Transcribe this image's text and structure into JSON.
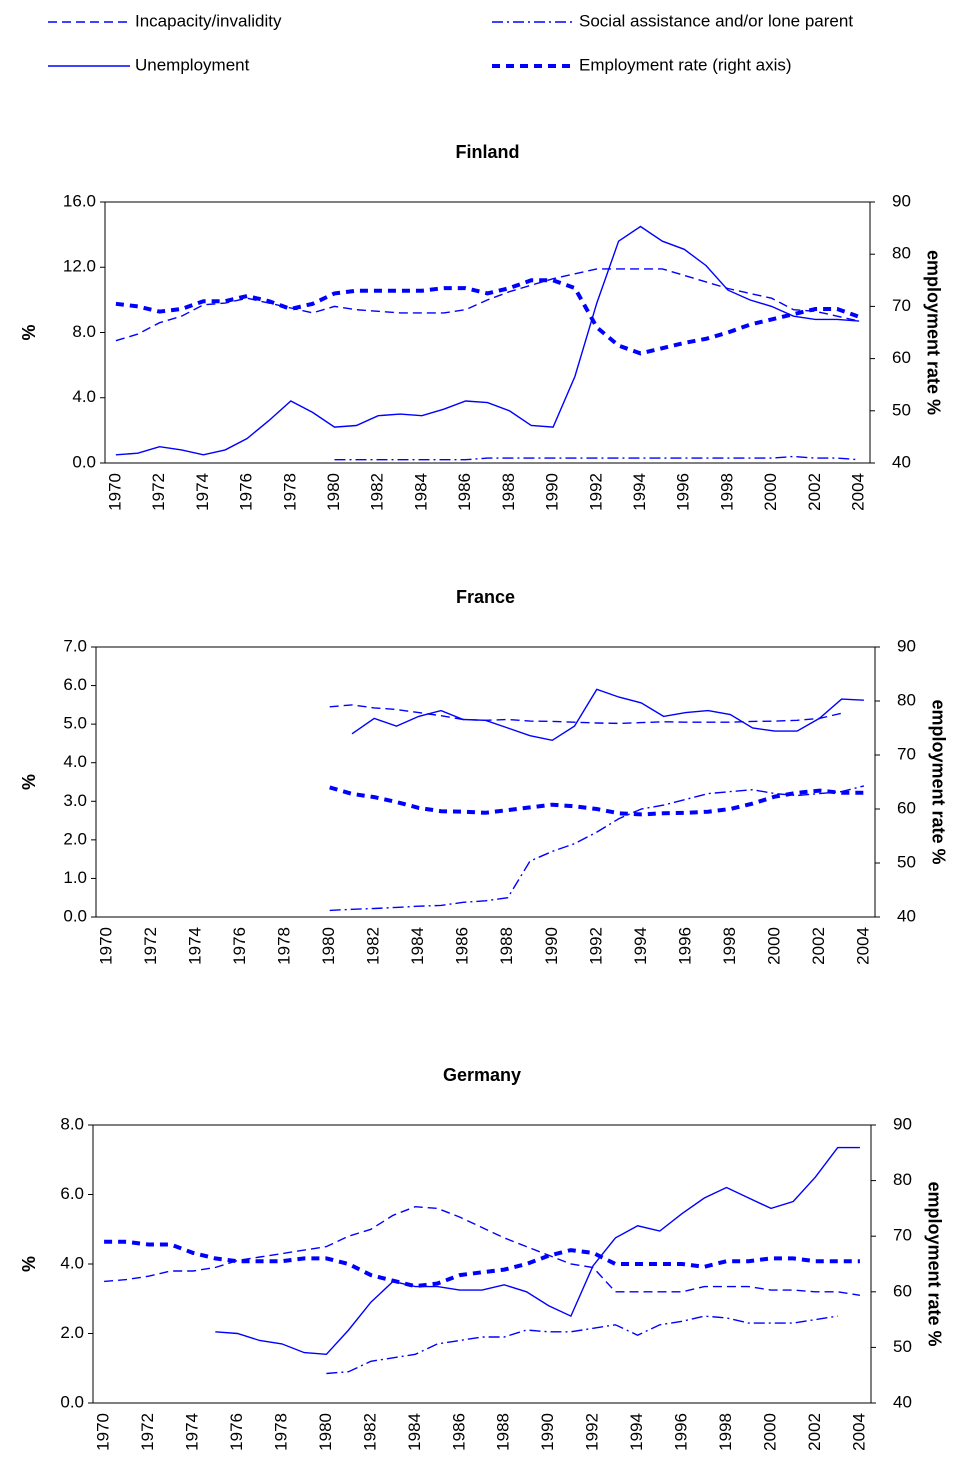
{
  "chart_data": [
    {
      "type": "line",
      "title": "Finland",
      "ylabel": "%",
      "y2label": "employment rate %",
      "categories": [
        "1970",
        null,
        "1972",
        null,
        "1974",
        null,
        "1976",
        null,
        "1978",
        null,
        "1980",
        null,
        "1982",
        null,
        "1984",
        null,
        "1986",
        null,
        "1988",
        null,
        "1990",
        null,
        "1992",
        null,
        "1994",
        null,
        "1996",
        null,
        "1998",
        null,
        "2000",
        null,
        "2002",
        null,
        "2004"
      ],
      "ylim": [
        0,
        16
      ],
      "yticks": [
        {
          "value": 0,
          "label": "0.0"
        },
        {
          "value": 4,
          "label": "4.0"
        },
        {
          "value": 8,
          "label": "8.0"
        },
        {
          "value": 12,
          "label": "12.0"
        },
        {
          "value": 16,
          "label": "16.0"
        }
      ],
      "y2lim": [
        40,
        90
      ],
      "y2ticks": [
        40,
        50,
        60,
        70,
        80,
        90
      ],
      "series": [
        {
          "name": "Incapacity/invalidity",
          "color": "#0000ff",
          "style": "dashed",
          "values": [
            7.5,
            7.9,
            8.6,
            9.0,
            9.7,
            9.8,
            10.1,
            9.8,
            9.5,
            9.2,
            9.6,
            9.4,
            9.3,
            9.2,
            9.2,
            9.2,
            9.4,
            10.0,
            10.5,
            10.9,
            11.3,
            11.6,
            11.9,
            11.9,
            11.9,
            11.9,
            11.5,
            11.1,
            10.7,
            10.4,
            10.1,
            9.4,
            9.3,
            9.0,
            8.7
          ]
        },
        {
          "name": "Social assistance and/or lone parent",
          "color": "#0000ff",
          "style": "dashdot",
          "values": [
            null,
            null,
            null,
            null,
            null,
            null,
            null,
            null,
            null,
            null,
            0.2,
            0.2,
            0.2,
            0.2,
            0.2,
            0.2,
            0.2,
            0.3,
            0.3,
            0.3,
            0.3,
            0.3,
            0.3,
            0.3,
            0.3,
            0.3,
            0.3,
            0.3,
            0.3,
            0.3,
            0.3,
            0.4,
            0.3,
            0.3,
            0.2
          ]
        },
        {
          "name": "Unemployment",
          "color": "#0000ff",
          "style": "solid",
          "values": [
            0.5,
            0.6,
            1.0,
            0.8,
            0.5,
            0.8,
            1.5,
            2.6,
            3.8,
            3.1,
            2.2,
            2.3,
            2.9,
            3.0,
            2.9,
            3.3,
            3.8,
            3.7,
            3.2,
            2.3,
            2.2,
            5.3,
            9.8,
            13.6,
            14.5,
            13.6,
            13.1,
            12.1,
            10.6,
            10.0,
            9.6,
            9.0,
            8.8,
            8.8,
            8.7
          ]
        },
        {
          "name": "Employment rate (right axis)",
          "color": "#0000ff",
          "style": "thick",
          "axis": "y2",
          "values": [
            70.5,
            70,
            69,
            69.5,
            71,
            71,
            72,
            71,
            69.5,
            70.5,
            72.5,
            73,
            73,
            73,
            73,
            73.5,
            73.5,
            72.5,
            73.5,
            75,
            75,
            73.5,
            66,
            62.5,
            61,
            62,
            63,
            63.8,
            65,
            66.5,
            67.5,
            68.5,
            69.5,
            69.5,
            68
          ]
        }
      ]
    },
    {
      "type": "line",
      "title": "France",
      "ylabel": "%",
      "y2label": "employment rate %",
      "categories": [
        "1970",
        null,
        "1972",
        null,
        "1974",
        null,
        "1976",
        null,
        "1978",
        null,
        "1980",
        null,
        "1982",
        null,
        "1984",
        null,
        "1986",
        null,
        "1988",
        null,
        "1990",
        null,
        "1992",
        null,
        "1994",
        null,
        "1996",
        null,
        "1998",
        null,
        "2000",
        null,
        "2002",
        null,
        "2004"
      ],
      "ylim": [
        0,
        7
      ],
      "yticks": [
        {
          "value": 0,
          "label": "0.0"
        },
        {
          "value": 1,
          "label": "1.0"
        },
        {
          "value": 2,
          "label": "2.0"
        },
        {
          "value": 3,
          "label": "3.0"
        },
        {
          "value": 4,
          "label": "4.0"
        },
        {
          "value": 5,
          "label": "5.0"
        },
        {
          "value": 6,
          "label": "6.0"
        },
        {
          "value": 7,
          "label": "7.0"
        }
      ],
      "y2lim": [
        40,
        90
      ],
      "y2ticks": [
        40,
        50,
        60,
        70,
        80,
        90
      ],
      "series": [
        {
          "color": "#0000ff",
          "style": "dashed",
          "values": [
            null,
            null,
            null,
            null,
            null,
            null,
            null,
            null,
            null,
            null,
            5.45,
            5.5,
            5.42,
            5.38,
            5.3,
            5.22,
            5.12,
            5.1,
            5.12,
            5.08,
            5.07,
            5.05,
            5.03,
            5.02,
            5.04,
            5.06,
            5.05,
            5.05,
            5.05,
            5.07,
            5.08,
            5.1,
            5.15,
            5.28,
            null
          ]
        },
        {
          "color": "#0000ff",
          "style": "dashdot",
          "values": [
            null,
            null,
            null,
            null,
            null,
            null,
            null,
            null,
            null,
            null,
            0.17,
            0.2,
            0.22,
            0.25,
            0.28,
            0.3,
            0.38,
            0.42,
            0.5,
            1.45,
            1.7,
            1.9,
            2.2,
            2.55,
            2.8,
            2.9,
            3.05,
            3.2,
            3.25,
            3.3,
            3.2,
            3.15,
            3.2,
            3.25,
            3.4
          ]
        },
        {
          "color": "#0000ff",
          "style": "solid",
          "values": [
            null,
            null,
            null,
            null,
            null,
            null,
            null,
            null,
            null,
            null,
            null,
            4.75,
            5.15,
            4.95,
            5.2,
            5.35,
            5.12,
            5.1,
            4.9,
            4.7,
            4.58,
            4.95,
            5.9,
            5.7,
            5.55,
            5.2,
            5.3,
            5.35,
            5.25,
            4.9,
            4.82,
            4.82,
            5.15,
            5.65,
            5.62
          ]
        },
        {
          "color": "#0000ff",
          "style": "thick",
          "axis": "y2",
          "values": [
            null,
            null,
            null,
            null,
            null,
            null,
            null,
            null,
            null,
            null,
            64,
            62.8,
            62.2,
            61.3,
            60.2,
            59.6,
            59.5,
            59.3,
            59.8,
            60.3,
            60.8,
            60.5,
            60,
            59.2,
            59,
            59.2,
            59.3,
            59.5,
            60,
            61,
            62.3,
            63,
            63.4,
            63,
            63
          ]
        }
      ]
    },
    {
      "type": "line",
      "title": "Germany",
      "ylabel": "%",
      "y2label": "employment rate %",
      "categories": [
        "1970",
        null,
        "1972",
        null,
        "1974",
        null,
        "1976",
        null,
        "1978",
        null,
        "1980",
        null,
        "1982",
        null,
        "1984",
        null,
        "1986",
        null,
        "1988",
        null,
        "1990",
        null,
        "1992",
        null,
        "1994",
        null,
        "1996",
        null,
        "1998",
        null,
        "2000",
        null,
        "2002",
        null,
        "2004"
      ],
      "ylim": [
        0,
        8
      ],
      "yticks": [
        {
          "value": 0,
          "label": "0.0"
        },
        {
          "value": 2,
          "label": "2.0"
        },
        {
          "value": 4,
          "label": "4.0"
        },
        {
          "value": 6,
          "label": "6.0"
        },
        {
          "value": 8,
          "label": "8.0"
        }
      ],
      "y2lim": [
        40,
        90
      ],
      "y2ticks": [
        40,
        50,
        60,
        70,
        80,
        90
      ],
      "series": [
        {
          "color": "#0000ff",
          "style": "dashed",
          "values": [
            3.5,
            3.55,
            3.65,
            3.8,
            3.8,
            3.9,
            4.1,
            4.2,
            4.3,
            4.4,
            4.5,
            4.8,
            5.0,
            5.4,
            5.65,
            5.6,
            5.35,
            5.05,
            4.75,
            4.5,
            4.25,
            4.0,
            3.9,
            3.2,
            3.2,
            3.2,
            3.2,
            3.35,
            3.35,
            3.35,
            3.25,
            3.25,
            3.2,
            3.2,
            3.1
          ]
        },
        {
          "color": "#0000ff",
          "style": "dashdot",
          "values": [
            null,
            null,
            null,
            null,
            null,
            null,
            null,
            null,
            null,
            null,
            0.85,
            0.9,
            1.2,
            1.3,
            1.4,
            1.7,
            1.8,
            1.9,
            1.9,
            2.1,
            2.05,
            2.05,
            2.15,
            2.25,
            1.95,
            2.25,
            2.35,
            2.5,
            2.45,
            2.3,
            2.3,
            2.3,
            2.4,
            2.5,
            null
          ]
        },
        {
          "color": "#0000ff",
          "style": "solid",
          "values": [
            null,
            null,
            null,
            null,
            null,
            2.05,
            2.0,
            1.8,
            1.7,
            1.45,
            1.4,
            2.1,
            2.9,
            3.5,
            3.35,
            3.35,
            3.25,
            3.25,
            3.4,
            3.2,
            2.8,
            2.5,
            3.95,
            4.75,
            5.1,
            4.95,
            5.45,
            5.9,
            6.2,
            5.9,
            5.6,
            5.8,
            6.5,
            7.35,
            7.35
          ]
        },
        {
          "color": "#0000ff",
          "style": "thick",
          "axis": "y2",
          "values": [
            69,
            69,
            68.5,
            68.5,
            67,
            66,
            65.5,
            65.5,
            65.5,
            66,
            66,
            65,
            63,
            62,
            61,
            61.5,
            63,
            63.5,
            64,
            65,
            66.5,
            67.5,
            67,
            65,
            65,
            65,
            65,
            64.5,
            65.5,
            65.5,
            66,
            66,
            65.5,
            65.5,
            65.5
          ]
        }
      ]
    }
  ]
}
